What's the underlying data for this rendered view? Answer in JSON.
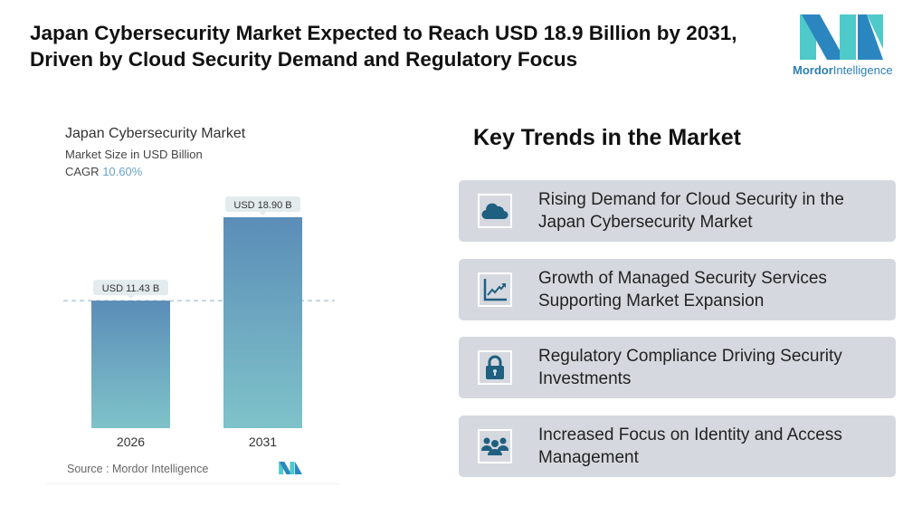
{
  "title": "Japan Cybersecurity Market Expected to Reach USD 18.9 Billion by 2031, Driven by Cloud Security Demand and Regulatory Focus",
  "logo": {
    "word1": "Mordor",
    "word2": "Intelligence"
  },
  "chart_data": {
    "type": "bar",
    "title": "Japan Cybersecurity Market",
    "subtitle": "Market Size in USD Billion",
    "cagr_label": "CAGR",
    "cagr_value": "10.60%",
    "categories": [
      "2026",
      "2031"
    ],
    "values": [
      11.43,
      18.9
    ],
    "data_labels": [
      "USD 11.43 B",
      "USD 18.90 B"
    ],
    "ylim": [
      0,
      18.9
    ],
    "source": "Source :  Mordor Intelligence",
    "colors": {
      "bar_top": "#5b8db8",
      "bar_bottom": "#7fc3c9"
    }
  },
  "trends": {
    "heading": "Key Trends in the Market",
    "items": [
      {
        "icon": "cloud-icon",
        "text": "Rising Demand for Cloud Security in the Japan Cybersecurity Market"
      },
      {
        "icon": "growth-chart-icon",
        "text": "Growth of Managed Security Services Supporting Market Expansion"
      },
      {
        "icon": "lock-icon",
        "text": "Regulatory Compliance Driving Security Investments"
      },
      {
        "icon": "users-group-icon",
        "text": "Increased Focus on Identity and Access Management"
      }
    ]
  },
  "colors": {
    "icon": "#1f5f80",
    "card": "#d5d9df"
  }
}
